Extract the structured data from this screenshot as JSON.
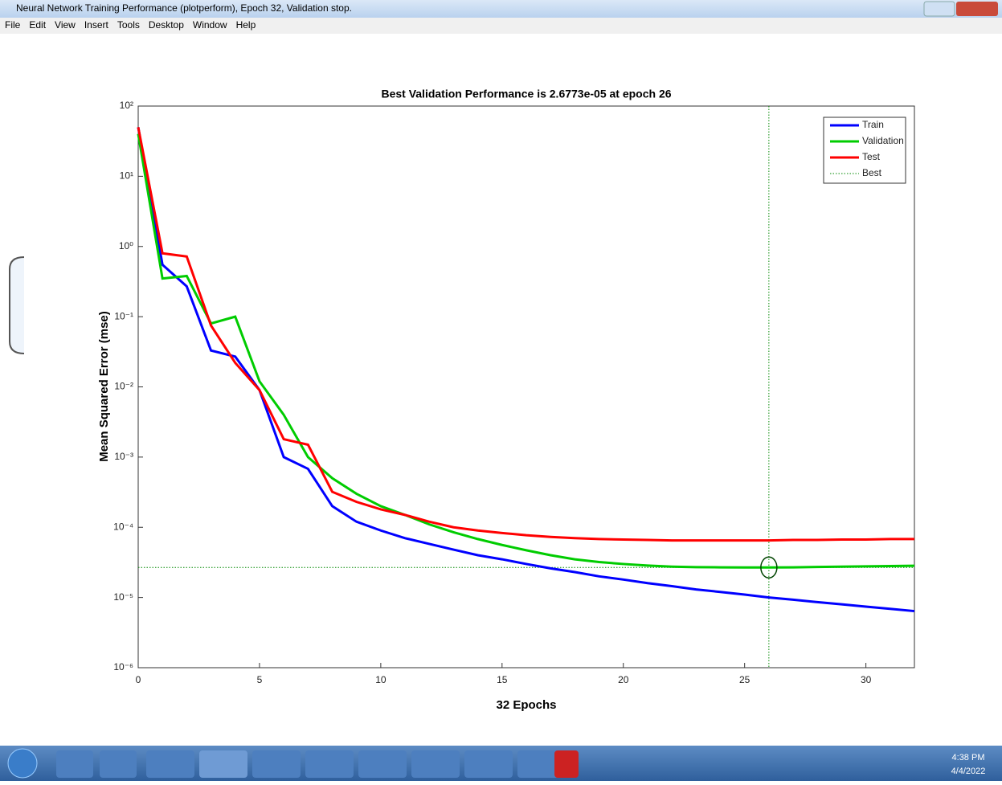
{
  "window": {
    "title": "Neural Network Training Performance (plotperform), Epoch 32, Validation stop.",
    "menu": [
      "File",
      "Edit",
      "View",
      "Insert",
      "Tools",
      "Desktop",
      "Window",
      "Help"
    ]
  },
  "taskbar": {
    "time": "4:38 PM",
    "date": "4/4/2022"
  },
  "chart_data": {
    "type": "line",
    "title": "Best Validation Performance is 2.6773e-05 at epoch 26",
    "x_label": "32 Epochs",
    "y_label": "Mean Squared Error  (mse)",
    "log_y": true,
    "legend": "upper right",
    "xlim": [
      0,
      32
    ],
    "xticks": [
      0,
      5,
      10,
      15,
      20,
      25,
      30
    ],
    "ylim": [
      1e-06,
      100
    ],
    "yticks": [
      {
        "value": 1e-06,
        "label": "10⁻⁶"
      },
      {
        "value": 1e-05,
        "label": "10⁻⁵"
      },
      {
        "value": 0.0001,
        "label": "10⁻⁴"
      },
      {
        "value": 0.001,
        "label": "10⁻³"
      },
      {
        "value": 0.01,
        "label": "10⁻²"
      },
      {
        "value": 0.1,
        "label": "10⁻¹"
      },
      {
        "value": 1,
        "label": "10⁰"
      },
      {
        "value": 10,
        "label": "10¹"
      },
      {
        "value": 100,
        "label": "10²"
      }
    ],
    "x": [
      0,
      1,
      2,
      3,
      4,
      5,
      6,
      7,
      8,
      9,
      10,
      11,
      12,
      13,
      14,
      15,
      16,
      17,
      18,
      19,
      20,
      21,
      22,
      23,
      24,
      25,
      26,
      27,
      28,
      29,
      30,
      31,
      32
    ],
    "series": [
      {
        "name": "Train",
        "color": "#0000ff",
        "values": [
          50,
          0.55,
          0.27,
          0.033,
          0.027,
          0.009,
          0.001,
          0.00068,
          0.0002,
          0.00012,
          9e-05,
          7e-05,
          5.8e-05,
          4.8e-05,
          4e-05,
          3.5e-05,
          3e-05,
          2.6e-05,
          2.3e-05,
          2e-05,
          1.8e-05,
          1.6e-05,
          1.45e-05,
          1.3e-05,
          1.2e-05,
          1.1e-05,
          1e-05,
          9.3e-06,
          8.6e-06,
          8e-06,
          7.4e-06,
          6.9e-06,
          6.4e-06
        ]
      },
      {
        "name": "Validation",
        "color": "#00cc00",
        "values": [
          40,
          0.35,
          0.38,
          0.08,
          0.1,
          0.012,
          0.004,
          0.001,
          0.0005,
          0.0003,
          0.0002,
          0.00015,
          0.00011,
          8.5e-05,
          6.8e-05,
          5.6e-05,
          4.7e-05,
          4e-05,
          3.5e-05,
          3.2e-05,
          3e-05,
          2.85e-05,
          2.75e-05,
          2.7e-05,
          2.69e-05,
          2.68e-05,
          2.6773e-05,
          2.69e-05,
          2.72e-05,
          2.75e-05,
          2.78e-05,
          2.8e-05,
          2.83e-05
        ]
      },
      {
        "name": "Test",
        "color": "#ff0000",
        "values": [
          50,
          0.8,
          0.72,
          0.075,
          0.022,
          0.009,
          0.0018,
          0.0015,
          0.00032,
          0.00023,
          0.00018,
          0.00015,
          0.00012,
          0.0001,
          9e-05,
          8.3e-05,
          7.7e-05,
          7.3e-05,
          7e-05,
          6.8e-05,
          6.7e-05,
          6.6e-05,
          6.5e-05,
          6.5e-05,
          6.5e-05,
          6.5e-05,
          6.5e-05,
          6.6e-05,
          6.6e-05,
          6.7e-05,
          6.7e-05,
          6.8e-05,
          6.8e-05
        ]
      }
    ],
    "best": {
      "name": "Best",
      "color": "#008800",
      "x": 26,
      "y": 2.6773e-05
    }
  }
}
